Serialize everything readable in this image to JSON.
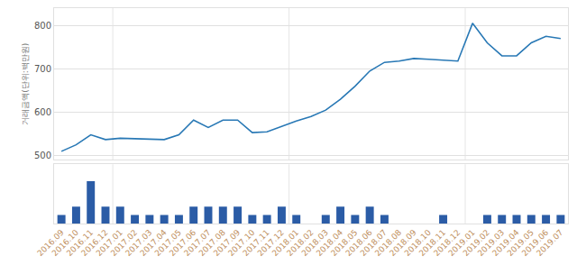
{
  "chart_data": [
    {
      "type": "line",
      "categories": [
        "2016.09",
        "2016.10",
        "2016.11",
        "2016.12",
        "2017.01",
        "2017.02",
        "2017.03",
        "2017.04",
        "2017.05",
        "2017.06",
        "2017.07",
        "2017.08",
        "2017.09",
        "2017.10",
        "2017.11",
        "2017.12",
        "2018.01",
        "2018.02",
        "2018.03",
        "2018.04",
        "2018.05",
        "2018.06",
        "2018.07",
        "2018.08",
        "2018.09",
        "2018.10",
        "2018.11",
        "2018.12",
        "2019.01",
        "2019.02",
        "2019.03",
        "2019.04",
        "2019.05",
        "2019.06",
        "2019.07"
      ],
      "values": [
        510,
        525,
        548,
        537,
        540,
        539,
        539,
        537,
        548,
        582,
        565,
        582,
        582,
        553,
        555,
        568,
        580,
        590,
        605,
        630,
        660,
        695,
        715,
        718,
        724,
        722,
        720,
        718,
        805,
        760,
        730,
        730,
        760,
        775,
        770
      ],
      "color": "#2878b5",
      "y_label": "거래금액(단위:백만원)",
      "ylim": [
        490,
        840
      ],
      "yticks": [
        500,
        600,
        700,
        800
      ],
      "grid": true,
      "tick_labels": "y"
    },
    {
      "type": "bar",
      "categories": [
        "2016.09",
        "2016.10",
        "2016.11",
        "2016.12",
        "2017.01",
        "2017.02",
        "2017.03",
        "2017.04",
        "2017.05",
        "2017.06",
        "2017.07",
        "2017.08",
        "2017.09",
        "2017.10",
        "2017.11",
        "2017.12",
        "2018.01",
        "2018.02",
        "2018.03",
        "2018.04",
        "2018.05",
        "2018.06",
        "2018.07",
        "2018.08",
        "2018.09",
        "2018.10",
        "2018.11",
        "2018.12",
        "2019.01",
        "2019.02",
        "2019.03",
        "2019.04",
        "2019.05",
        "2019.06",
        "2019.07"
      ],
      "values": [
        1,
        2,
        5,
        2,
        2,
        1,
        1,
        1,
        1,
        2,
        2,
        2,
        2,
        1,
        1,
        2,
        1,
        0,
        1,
        2,
        1,
        2,
        1,
        0,
        0,
        0,
        1,
        0,
        0,
        1,
        1,
        1,
        1,
        1,
        1
      ],
      "color": "#2b5ca6",
      "ylim": [
        0,
        7
      ],
      "grid": false,
      "tick_labels": "x"
    }
  ]
}
